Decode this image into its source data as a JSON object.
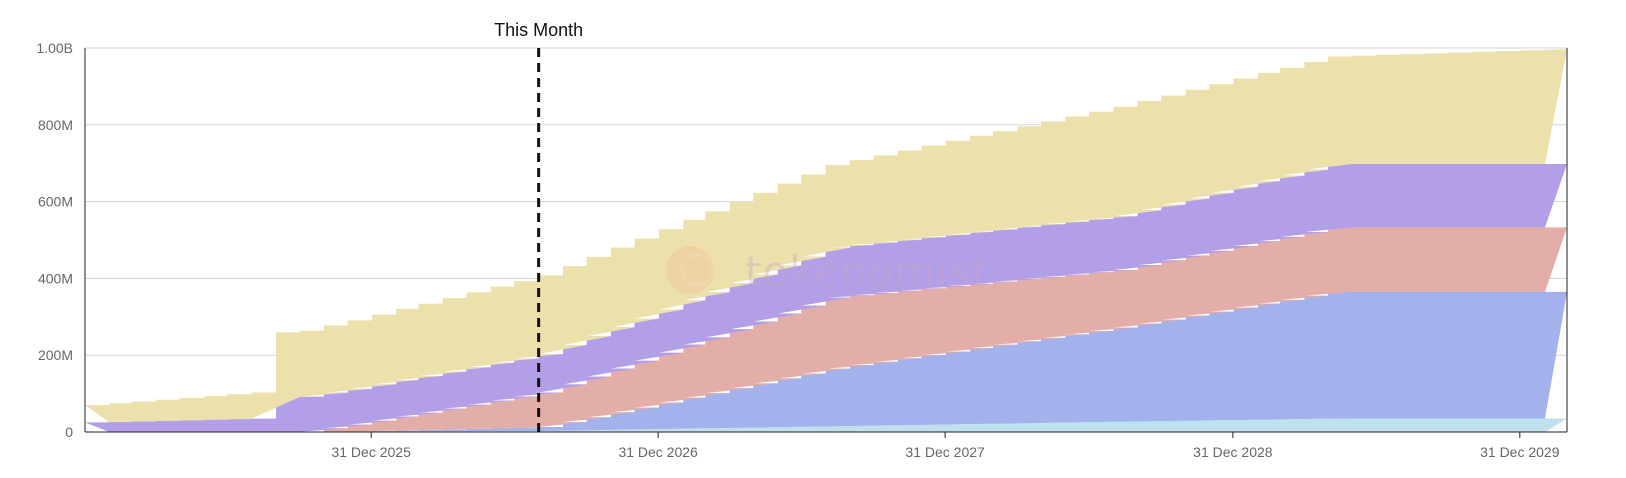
{
  "colors": {
    "background": "#ffffff",
    "grid": "#d6d6d6",
    "axis": "#222222",
    "marker_line": "#111111",
    "series": [
      "#bfe0ec",
      "#a3b2ec",
      "#e3ada8",
      "#b29fe8",
      "#ece0ab"
    ],
    "watermark_icon": "#efc89a"
  },
  "watermark": {
    "icon": "tokenomist-logo-icon",
    "text": "tokenomist"
  },
  "chart_data": {
    "type": "area",
    "stacked": true,
    "step": true,
    "x_axis": {
      "type": "date",
      "min": "2025-01-01",
      "max": "2030-03-01",
      "ticks": [
        {
          "date": "2025-12-31",
          "label": "31 Dec 2025"
        },
        {
          "date": "2026-12-31",
          "label": "31 Dec 2026"
        },
        {
          "date": "2027-12-31",
          "label": "31 Dec 2027"
        },
        {
          "date": "2028-12-31",
          "label": "31 Dec 2028"
        },
        {
          "date": "2029-12-31",
          "label": "31 Dec 2029"
        }
      ]
    },
    "y_axis": {
      "min": 0,
      "max": 1000000000,
      "ticks": [
        {
          "value": 0,
          "label": "0"
        },
        {
          "value": 200000000,
          "label": "200M"
        },
        {
          "value": 400000000,
          "label": "400M"
        },
        {
          "value": 600000000,
          "label": "600M"
        },
        {
          "value": 800000000,
          "label": "800M"
        },
        {
          "value": 1000000000,
          "label": "1.00B"
        }
      ]
    },
    "grid": true,
    "legend": "none",
    "marker": {
      "date": "2026-08-01",
      "label": "This Month"
    },
    "series": [
      {
        "points": [
          [
            "2025-01-01",
            0
          ],
          [
            "2025-08-01",
            0
          ],
          [
            "2026-08-01",
            3000000
          ],
          [
            "2027-08-01",
            15000000
          ],
          [
            "2028-08-01",
            27000000
          ],
          [
            "2029-05-01",
            35000000
          ],
          [
            "2030-03-01",
            35000000
          ]
        ]
      },
      {
        "points": [
          [
            "2025-01-01",
            0
          ],
          [
            "2025-12-01",
            0
          ],
          [
            "2026-08-01",
            10000000
          ],
          [
            "2027-08-01",
            150000000
          ],
          [
            "2028-08-01",
            245000000
          ],
          [
            "2029-05-01",
            330000000
          ],
          [
            "2030-03-01",
            330000000
          ]
        ]
      },
      {
        "points": [
          [
            "2025-01-01",
            0
          ],
          [
            "2025-10-01",
            0
          ],
          [
            "2026-08-01",
            90000000
          ],
          [
            "2027-08-01",
            185000000
          ],
          [
            "2028-08-01",
            150000000
          ],
          [
            "2029-05-01",
            168000000
          ],
          [
            "2030-03-01",
            168000000
          ]
        ]
      },
      {
        "points": [
          [
            "2025-01-01",
            25000000
          ],
          [
            "2025-08-01",
            35000000
          ],
          [
            "2025-08-02",
            90000000
          ],
          [
            "2026-08-01",
            100000000
          ],
          [
            "2027-08-01",
            130000000
          ],
          [
            "2028-08-01",
            140000000
          ],
          [
            "2029-05-01",
            165000000
          ],
          [
            "2030-03-01",
            165000000
          ]
        ]
      },
      {
        "points": [
          [
            "2025-01-01",
            45000000
          ],
          [
            "2025-08-01",
            68000000
          ],
          [
            "2025-08-02",
            165000000
          ],
          [
            "2026-08-01",
            205000000
          ],
          [
            "2027-08-01",
            215000000
          ],
          [
            "2028-08-01",
            285000000
          ],
          [
            "2029-05-01",
            280000000
          ],
          [
            "2030-03-01",
            300000000
          ]
        ]
      }
    ]
  }
}
